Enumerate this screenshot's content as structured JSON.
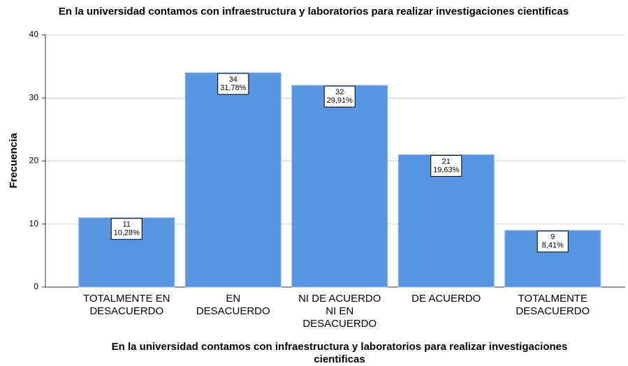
{
  "chart_data": {
    "type": "bar",
    "title": "En la universidad contamos con infraestructura y laboratorios para realizar investigaciones cientificas",
    "ylabel": "Frecuencia",
    "xlabel": [
      "En la universidad contamos con infraestructura y laboratorios para realizar investigaciones",
      "cientificas"
    ],
    "categories": [
      [
        "TOTALMENTE EN",
        "DESACUERDO"
      ],
      [
        "EN",
        "DESACUERDO"
      ],
      [
        "NI DE ACUERDO",
        "NI EN",
        "DESACUERDO"
      ],
      [
        "DE ACUERDO"
      ],
      [
        "TOTALMENTE",
        "DESACUERDO"
      ]
    ],
    "values": [
      11,
      34,
      32,
      21,
      9
    ],
    "percentages": [
      10.28,
      31.78,
      29.91,
      19.63,
      8.41
    ],
    "percentage_labels": [
      "10,28%",
      "31,78%",
      "29,91%",
      "19,63%",
      "8,41%"
    ],
    "color": "#5896e2",
    "ylim": [
      0,
      40
    ],
    "yticks": [
      0,
      10,
      20,
      30,
      40
    ],
    "grid": true
  }
}
